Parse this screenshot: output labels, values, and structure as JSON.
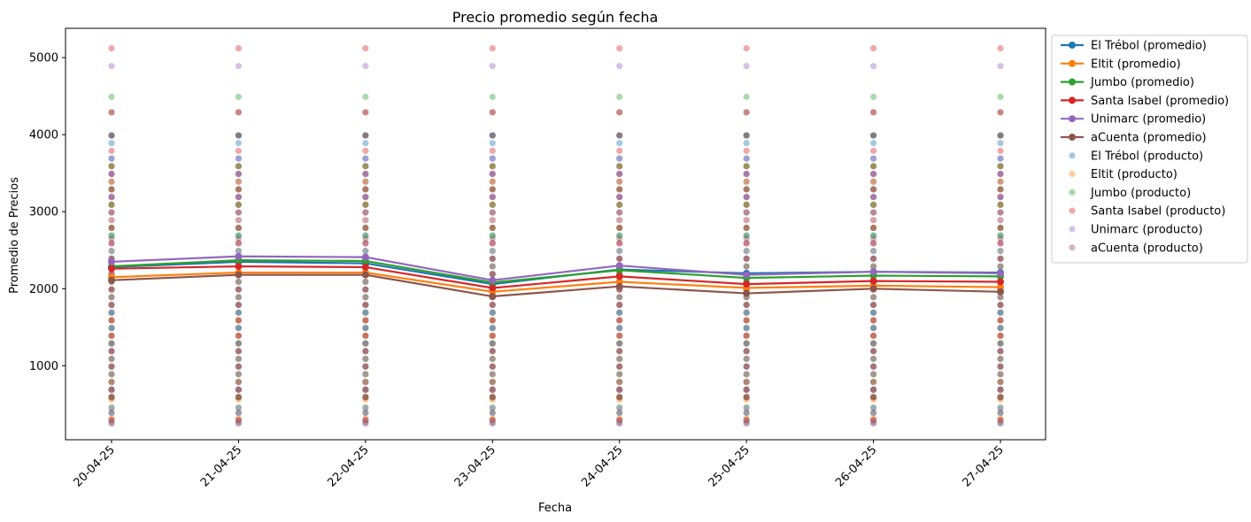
{
  "chart_data": {
    "type": "line",
    "title": "Precio promedio según fecha",
    "xlabel": "Fecha",
    "ylabel": "Promedio de Precios",
    "categories": [
      "20-04-25",
      "21-04-25",
      "22-04-25",
      "23-04-25",
      "24-04-25",
      "25-04-25",
      "26-04-25",
      "27-04-25"
    ],
    "ylim": [
      40,
      5380
    ],
    "yticks": [
      1000,
      2000,
      3000,
      4000,
      5000
    ],
    "grid": false,
    "legend_position": "outside-right-top",
    "series": [
      {
        "name": "El Trébol (promedio)",
        "color": "#1f77b4",
        "values": [
          2280,
          2350,
          2330,
          2060,
          2250,
          2200,
          2220,
          2210
        ]
      },
      {
        "name": "Eltit (promedio)",
        "color": "#ff7f0e",
        "values": [
          2150,
          2210,
          2210,
          1960,
          2090,
          2010,
          2040,
          2020
        ]
      },
      {
        "name": "Jumbo (promedio)",
        "color": "#2ca02c",
        "values": [
          2290,
          2370,
          2360,
          2080,
          2240,
          2140,
          2170,
          2160
        ]
      },
      {
        "name": "Santa Isabel (promedio)",
        "color": "#d62728",
        "values": [
          2260,
          2290,
          2280,
          2010,
          2160,
          2060,
          2100,
          2090
        ]
      },
      {
        "name": "Unimarc (promedio)",
        "color": "#9467bd",
        "values": [
          2350,
          2420,
          2410,
          2110,
          2300,
          2180,
          2220,
          2200
        ]
      },
      {
        "name": "aCuenta (promedio)",
        "color": "#8c564b",
        "values": [
          2110,
          2180,
          2180,
          1900,
          2030,
          1940,
          2000,
          1960
        ]
      }
    ],
    "scatter_series": [
      {
        "name": "El Trébol (producto)",
        "color": "#1f77b4",
        "values": [
          290,
          390,
          590,
          690,
          790,
          990,
          1190,
          1290,
          1490,
          1690,
          1790,
          1990,
          2190,
          2390,
          2690,
          2990,
          3190,
          3490,
          3690,
          3890,
          3990
        ]
      },
      {
        "name": "Eltit (producto)",
        "color": "#ff7f0e",
        "values": [
          310,
          560,
          690,
          790,
          890,
          1090,
          1290,
          1390,
          1590,
          1890,
          2090,
          2290,
          2590,
          2890,
          3090,
          3390,
          3590
        ]
      },
      {
        "name": "Jumbo (producto)",
        "color": "#2ca02c",
        "values": [
          460,
          590,
          690,
          890,
          1090,
          1290,
          1490,
          1690,
          1890,
          2090,
          2290,
          2490,
          2690,
          2790,
          3090,
          3290,
          3590,
          3990,
          4490
        ]
      },
      {
        "name": "Santa Isabel (producto)",
        "color": "#d62728",
        "values": [
          300,
          590,
          690,
          990,
          1190,
          1390,
          1590,
          1790,
          1990,
          2190,
          2390,
          2590,
          2790,
          2990,
          3190,
          3290,
          3490,
          3790,
          4290,
          5120
        ]
      },
      {
        "name": "Unimarc (producto)",
        "color": "#9467bd",
        "values": [
          250,
          450,
          690,
          890,
          1090,
          1290,
          1490,
          1690,
          1890,
          2090,
          2290,
          2490,
          2590,
          2890,
          3190,
          3490,
          3690,
          3990,
          4890
        ]
      },
      {
        "name": "aCuenta (producto)",
        "color": "#8c564b",
        "values": [
          260,
          390,
          600,
          790,
          990,
          1190,
          1390,
          1590,
          1790,
          1990,
          2190,
          2390,
          2650,
          2790,
          3090,
          3290,
          3390,
          3590,
          3990,
          4290
        ]
      }
    ]
  }
}
